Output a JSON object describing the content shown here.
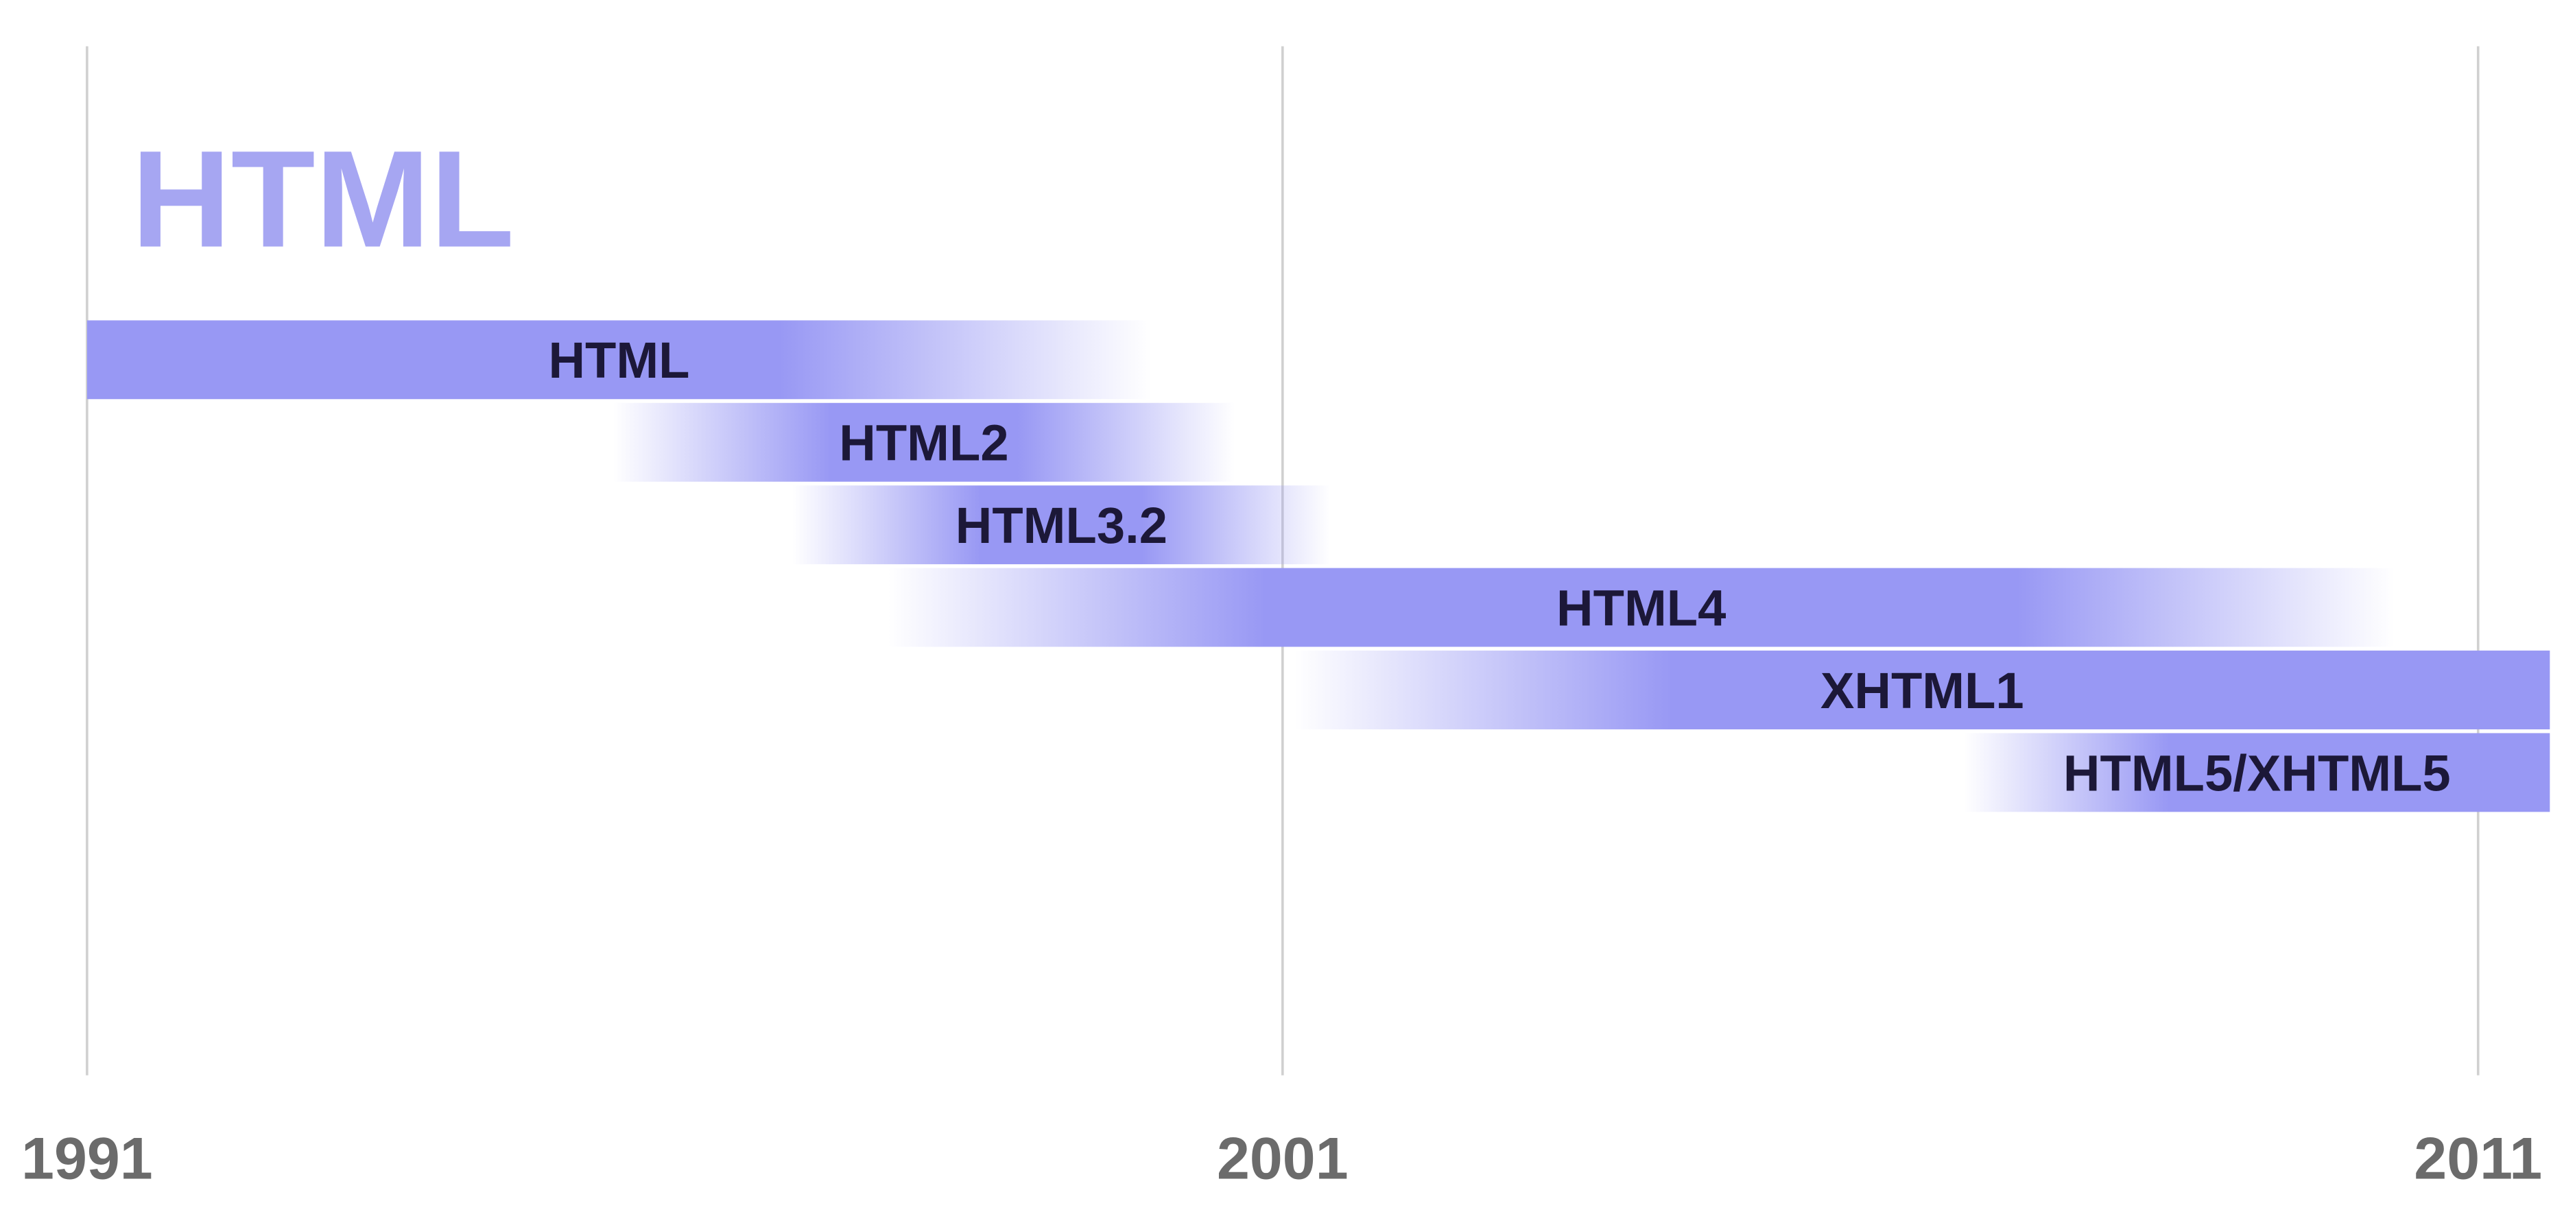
{
  "chart_data": {
    "type": "timeline",
    "title": "HTML",
    "color": "#9898f4",
    "xlim": [
      1991,
      2011.6
    ],
    "xticks": [
      1991,
      2001,
      2011
    ],
    "grid": true,
    "series": [
      {
        "name": "HTML",
        "start": 1991,
        "end": 1999.9
      },
      {
        "name": "HTML2",
        "start": 1995.4,
        "end": 2000.6
      },
      {
        "name": "HTML3.2",
        "start": 1996.9,
        "end": 2001.4
      },
      {
        "name": "HTML4",
        "start": 1997.7,
        "end": 2010.3
      },
      {
        "name": "XHTML1",
        "start": 2001.1,
        "end": 2011.6
      },
      {
        "name": "HTML5/XHTML5",
        "start": 2006.7,
        "end": 2011.6
      }
    ]
  }
}
